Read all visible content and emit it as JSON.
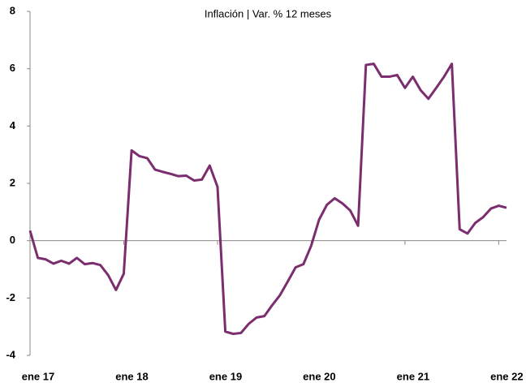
{
  "chart_data": {
    "type": "line",
    "subtitle": "Inflación | Var. % 12 meses",
    "x": [
      0,
      1,
      2,
      3,
      4,
      5,
      6,
      7,
      8,
      9,
      10,
      11,
      12,
      13,
      14,
      15,
      16,
      17,
      18,
      19,
      20,
      21,
      22,
      23,
      24,
      25,
      26,
      27,
      28,
      29,
      30,
      31,
      32,
      33,
      34,
      35,
      36,
      37,
      38,
      39,
      40,
      41,
      42,
      43,
      44,
      45,
      46,
      47,
      48,
      49,
      50,
      51,
      52,
      53,
      54,
      55,
      56,
      57,
      58,
      59,
      60,
      61
    ],
    "series": [
      {
        "color": "#7b2d6e",
        "values": [
          0.35,
          -0.6,
          -0.65,
          -0.8,
          -0.7,
          -0.8,
          -0.6,
          -0.82,
          -0.78,
          -0.85,
          -1.2,
          -1.72,
          -1.15,
          3.15,
          2.95,
          2.88,
          2.48,
          2.4,
          2.33,
          2.25,
          2.27,
          2.1,
          2.13,
          2.62,
          1.88,
          -3.17,
          -3.25,
          -3.22,
          -2.9,
          -2.68,
          -2.63,
          -2.25,
          -1.9,
          -1.42,
          -0.93,
          -0.82,
          -0.17,
          0.73,
          1.25,
          1.48,
          1.3,
          1.05,
          0.52,
          6.13,
          6.17,
          5.72,
          5.72,
          5.78,
          5.33,
          5.72,
          5.25,
          4.95,
          5.33,
          5.72,
          6.17,
          0.4,
          0.25,
          0.62,
          0.82,
          1.12,
          1.22,
          1.15
        ]
      }
    ],
    "xlim": [
      0,
      61
    ],
    "xticks": [
      {
        "value": 0,
        "label": "ene 17"
      },
      {
        "value": 12,
        "label": "ene 18"
      },
      {
        "value": 24,
        "label": "ene 19"
      },
      {
        "value": 36,
        "label": "ene 20"
      },
      {
        "value": 48,
        "label": "ene 21"
      },
      {
        "value": 60,
        "label": "ene 22"
      }
    ],
    "ylim": [
      -4,
      8
    ],
    "yticks": [
      -4,
      -2,
      0,
      2,
      4,
      6,
      8
    ],
    "grid": false
  }
}
